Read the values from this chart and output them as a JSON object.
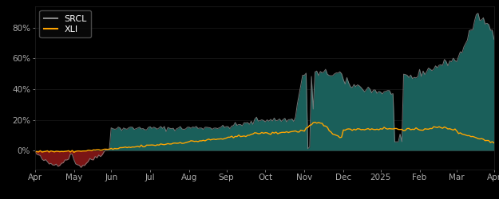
{
  "background_color": "#000000",
  "plot_bg_color": "#000000",
  "title": "",
  "ylabel": "",
  "xlabel": "",
  "legend": [
    "SRCL",
    "XLI"
  ],
  "srcl_color": "#888888",
  "xli_color": "#FFA500",
  "fill_positive_color": "#1a5f5a",
  "fill_negative_color": "#7a1515",
  "tick_color": "#aaaaaa",
  "ytick_labels": [
    "0%",
    "20%",
    "40%",
    "60%",
    "80%"
  ],
  "ytick_values": [
    0.0,
    0.2,
    0.4,
    0.6,
    0.8
  ],
  "ylim": [
    -0.12,
    0.94
  ],
  "x_labels": [
    "Apr",
    "May",
    "Jun",
    "Jul",
    "Aug",
    "Sep",
    "Oct",
    "Nov",
    "Dec",
    "2025",
    "Feb",
    "Mar",
    "Apr"
  ],
  "n_points": 260
}
